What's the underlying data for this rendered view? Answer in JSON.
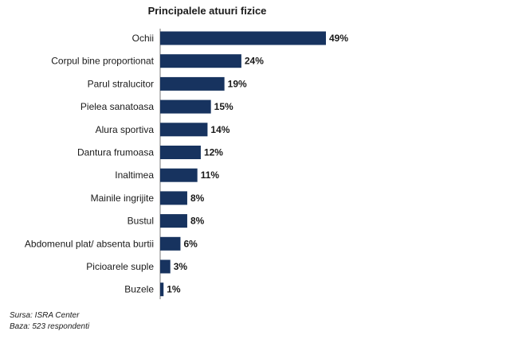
{
  "chart_data": {
    "type": "bar",
    "orientation": "horizontal",
    "title": "Principalele atuuri fizice",
    "categories": [
      "Ochii",
      "Corpul bine proportionat",
      "Parul stralucitor",
      "Pielea sanatoasa",
      "Alura sportiva",
      "Dantura frumoasa",
      "Inaltimea",
      "Mainile ingrijite",
      "Bustul",
      "Abdomenul plat/ absenta burtii",
      "Picioarele suple",
      "Buzele"
    ],
    "values": [
      49,
      24,
      19,
      15,
      14,
      12,
      11,
      8,
      8,
      6,
      3,
      1
    ],
    "value_labels": [
      "49%",
      "24%",
      "19%",
      "15%",
      "14%",
      "12%",
      "11%",
      "8%",
      "8%",
      "6%",
      "3%",
      "1%"
    ],
    "unit": "%",
    "xlabel": "",
    "ylabel": "",
    "xlim": [
      0,
      49
    ],
    "grid": false,
    "legend": "none",
    "bar_color": "#17335f"
  },
  "footnotes": {
    "source": "Sursa: ISRA Center",
    "base": "Baza: 523 respondenti"
  }
}
